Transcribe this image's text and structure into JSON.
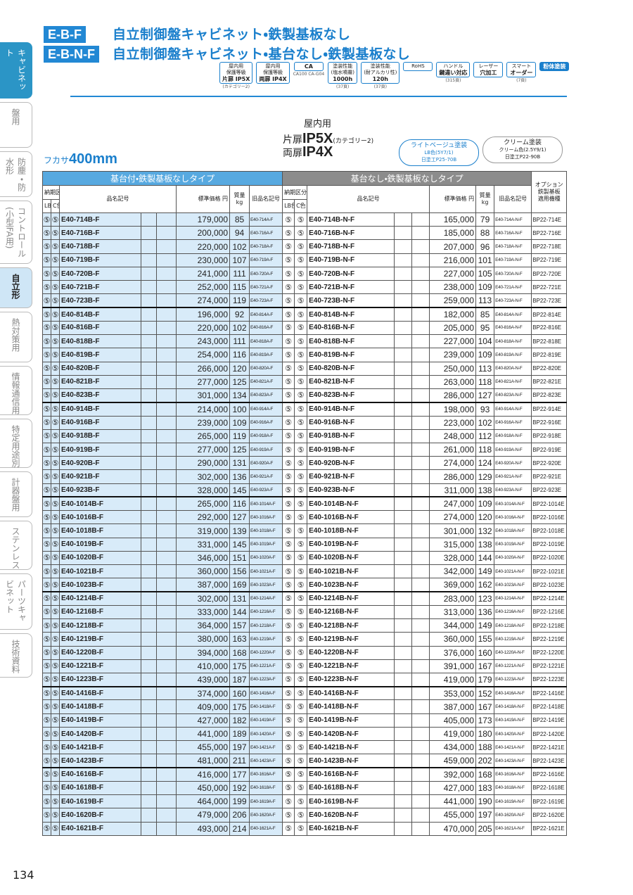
{
  "header": {
    "codes": [
      "E-B-F",
      "E-B-N-F"
    ],
    "titles": [
      "自立制御盤キャビネット・鉄製基板なし",
      "自立制御盤キャビネット・基台なし・鉄製基板なし"
    ]
  },
  "badges": [
    {
      "top": "屋内用",
      "mid": "保護等級",
      "main": "片扉 IP5X",
      "note": "(カテゴリー2)"
    },
    {
      "top": "屋内用",
      "mid": "保護等級",
      "main": "両扉 IP4X"
    },
    {
      "main": "CA",
      "note": "CA100 CA-G04"
    },
    {
      "top": "塗装性能",
      "mid": "(塩水噴霧)",
      "main": "1000h",
      "note": "(37頁)"
    },
    {
      "top": "塗装性能",
      "mid": "(耐アルカリ性)",
      "main": "120h",
      "note": "(37頁)"
    },
    {
      "top": "RoHS"
    },
    {
      "top": "ハンドル",
      "main": "鍵違い対応",
      "note": "(315頁)"
    },
    {
      "top": "レーザー",
      "main": "穴加工"
    },
    {
      "top": "スマート",
      "main": "オーダー",
      "note": "(7頁)"
    },
    {
      "main": "粉体塗装"
    }
  ],
  "sidebar": {
    "tabs": [
      "キャビネット",
      "盤用",
      "防塵・防水形",
      "コントロール(小型FA用)",
      "自立形",
      "熱対策用",
      "情報通信用",
      "特定用途別",
      "計器盤用",
      "ステンレス",
      "パーツキャビネット",
      "技術資料"
    ]
  },
  "spec": {
    "usage": "屋内用",
    "single_door": "片扉",
    "ip_single": "IP5X",
    "category": "(カテゴリー2)",
    "double_door": "両扉",
    "ip_double": "IP4X",
    "depth_label": "フカサ",
    "depth": "400mm",
    "colors": [
      {
        "name": "ライトベージュ塗装",
        "code": "LB色(5Y7/1)",
        "std": "日塗工P25-70B"
      },
      {
        "name": "クリーム塗装",
        "code": "クリーム色(2.5Y9/1)",
        "std": "日塗工P22-90B"
      }
    ]
  },
  "table": {
    "group_headers": [
      "基台付・鉄製基板なしタイプ",
      "基台なし・鉄製基板なしタイプ"
    ],
    "option_header": [
      "オプション",
      "鉄製基板",
      "適用機種"
    ],
    "left_columns": {
      "delivery": "納期区分",
      "lb": "LB色",
      "c": "C色",
      "name": "品名記号",
      "price": "標準価格 円",
      "mass": "質量 kg",
      "old": "旧品名記号"
    },
    "right_columns": {
      "delivery": "納期区分",
      "lb": "LB色",
      "c": "C色",
      "name": "品名記号",
      "price": "標準価格 円",
      "mass": "質量 kg",
      "old": "旧品名記号"
    },
    "rows": [
      [
        "⑤",
        "⑤",
        "E40-714B-F",
        "179,000",
        "85",
        "E40-714A-F",
        "⑤",
        "⑤",
        "E40-714B-N-F",
        "165,000",
        "79",
        "E40-714A-N-F",
        "BP22-714E"
      ],
      [
        "⑤",
        "⑤",
        "E40-716B-F",
        "200,000",
        "94",
        "E40-716A-F",
        "⑤",
        "⑤",
        "E40-716B-N-F",
        "185,000",
        "88",
        "E40-716A-N-F",
        "BP22-716E"
      ],
      [
        "⑤",
        "⑤",
        "E40-718B-F",
        "220,000",
        "102",
        "E40-718A-F",
        "⑤",
        "⑤",
        "E40-718B-N-F",
        "207,000",
        "96",
        "E40-718A-N-F",
        "BP22-718E"
      ],
      [
        "⑤",
        "⑤",
        "E40-719B-F",
        "230,000",
        "107",
        "E40-719A-F",
        "⑤",
        "⑤",
        "E40-719B-N-F",
        "216,000",
        "101",
        "E40-719A-N-F",
        "BP22-719E"
      ],
      [
        "⑤",
        "⑤",
        "E40-720B-F",
        "241,000",
        "111",
        "E40-720A-F",
        "⑤",
        "⑤",
        "E40-720B-N-F",
        "227,000",
        "105",
        "E40-720A-N-F",
        "BP22-720E"
      ],
      [
        "⑤",
        "⑤",
        "E40-721B-F",
        "252,000",
        "115",
        "E40-721A-F",
        "⑤",
        "⑤",
        "E40-721B-N-F",
        "238,000",
        "109",
        "E40-721A-N-F",
        "BP22-721E"
      ],
      [
        "⑤",
        "⑤",
        "E40-723B-F",
        "274,000",
        "119",
        "E40-723A-F",
        "⑤",
        "⑤",
        "E40-723B-N-F",
        "259,000",
        "113",
        "E40-723A-N-F",
        "BP22-723E"
      ],
      [
        "⑤",
        "⑤",
        "E40-814B-F",
        "196,000",
        "92",
        "E40-814A-F",
        "⑤",
        "⑤",
        "E40-814B-N-F",
        "182,000",
        "85",
        "E40-814A-N-F",
        "BP22-814E"
      ],
      [
        "⑤",
        "⑤",
        "E40-816B-F",
        "220,000",
        "102",
        "E40-816A-F",
        "⑤",
        "⑤",
        "E40-816B-N-F",
        "205,000",
        "95",
        "E40-816A-N-F",
        "BP22-816E"
      ],
      [
        "⑤",
        "⑤",
        "E40-818B-F",
        "243,000",
        "111",
        "E40-818A-F",
        "⑤",
        "⑤",
        "E40-818B-N-F",
        "227,000",
        "104",
        "E40-818A-N-F",
        "BP22-818E"
      ],
      [
        "⑤",
        "⑤",
        "E40-819B-F",
        "254,000",
        "116",
        "E40-819A-F",
        "⑤",
        "⑤",
        "E40-819B-N-F",
        "239,000",
        "109",
        "E40-819A-N-F",
        "BP22-819E"
      ],
      [
        "⑤",
        "⑤",
        "E40-820B-F",
        "266,000",
        "120",
        "E40-820A-F",
        "⑤",
        "⑤",
        "E40-820B-N-F",
        "250,000",
        "113",
        "E40-820A-N-F",
        "BP22-820E"
      ],
      [
        "⑤",
        "⑤",
        "E40-821B-F",
        "277,000",
        "125",
        "E40-821A-F",
        "⑤",
        "⑤",
        "E40-821B-N-F",
        "263,000",
        "118",
        "E40-821A-N-F",
        "BP22-821E"
      ],
      [
        "⑤",
        "⑤",
        "E40-823B-F",
        "301,000",
        "134",
        "E40-823A-F",
        "⑤",
        "⑤",
        "E40-823B-N-F",
        "286,000",
        "127",
        "E40-823A-N-F",
        "BP22-823E"
      ],
      [
        "⑤",
        "⑤",
        "E40-914B-F",
        "214,000",
        "100",
        "E40-914A-F",
        "⑤",
        "⑤",
        "E40-914B-N-F",
        "198,000",
        "93",
        "E40-914A-N-F",
        "BP22-914E"
      ],
      [
        "⑤",
        "⑤",
        "E40-916B-F",
        "239,000",
        "109",
        "E40-916A-F",
        "⑤",
        "⑤",
        "E40-916B-N-F",
        "223,000",
        "102",
        "E40-916A-N-F",
        "BP22-916E"
      ],
      [
        "⑤",
        "⑤",
        "E40-918B-F",
        "265,000",
        "119",
        "E40-918A-F",
        "⑤",
        "⑤",
        "E40-918B-N-F",
        "248,000",
        "112",
        "E40-918A-N-F",
        "BP22-918E"
      ],
      [
        "⑤",
        "⑤",
        "E40-919B-F",
        "277,000",
        "125",
        "E40-919A-F",
        "⑤",
        "⑤",
        "E40-919B-N-F",
        "261,000",
        "118",
        "E40-919A-N-F",
        "BP22-919E"
      ],
      [
        "⑤",
        "⑤",
        "E40-920B-F",
        "290,000",
        "131",
        "E40-920A-F",
        "⑤",
        "⑤",
        "E40-920B-N-F",
        "274,000",
        "124",
        "E40-920A-N-F",
        "BP22-920E"
      ],
      [
        "⑤",
        "⑤",
        "E40-921B-F",
        "302,000",
        "136",
        "E40-921A-F",
        "⑤",
        "⑤",
        "E40-921B-N-F",
        "286,000",
        "129",
        "E40-921A-N-F",
        "BP22-921E"
      ],
      [
        "⑤",
        "⑤",
        "E40-923B-F",
        "328,000",
        "145",
        "E40-923A-F",
        "⑤",
        "⑤",
        "E40-923B-N-F",
        "311,000",
        "138",
        "E40-923A-N-F",
        "BP22-923E"
      ],
      [
        "⑤",
        "⑤",
        "E40-1014B-F",
        "265,000",
        "116",
        "E40-1014A-F",
        "⑤",
        "⑤",
        "E40-1014B-N-F",
        "247,000",
        "109",
        "E40-1014A-N-F",
        "BP22-1014E"
      ],
      [
        "⑤",
        "⑤",
        "E40-1016B-F",
        "292,000",
        "127",
        "E40-1016A-F",
        "⑤",
        "⑤",
        "E40-1016B-N-F",
        "274,000",
        "120",
        "E40-1016A-N-F",
        "BP22-1016E"
      ],
      [
        "⑤",
        "⑤",
        "E40-1018B-F",
        "319,000",
        "139",
        "E40-1018A-F",
        "⑤",
        "⑤",
        "E40-1018B-N-F",
        "301,000",
        "132",
        "E40-1018A-N-F",
        "BP22-1018E"
      ],
      [
        "⑤",
        "⑤",
        "E40-1019B-F",
        "331,000",
        "145",
        "E40-1019A-F",
        "⑤",
        "⑤",
        "E40-1019B-N-F",
        "315,000",
        "138",
        "E40-1019A-N-F",
        "BP22-1019E"
      ],
      [
        "⑤",
        "⑤",
        "E40-1020B-F",
        "346,000",
        "151",
        "E40-1020A-F",
        "⑤",
        "⑤",
        "E40-1020B-N-F",
        "328,000",
        "144",
        "E40-1020A-N-F",
        "BP22-1020E"
      ],
      [
        "⑤",
        "⑤",
        "E40-1021B-F",
        "360,000",
        "156",
        "E40-1021A-F",
        "⑤",
        "⑤",
        "E40-1021B-N-F",
        "342,000",
        "149",
        "E40-1021A-N-F",
        "BP22-1021E"
      ],
      [
        "⑤",
        "⑤",
        "E40-1023B-F",
        "387,000",
        "169",
        "E40-1023A-F",
        "⑤",
        "⑤",
        "E40-1023B-N-F",
        "369,000",
        "162",
        "E40-1023A-N-F",
        "BP22-1023E"
      ],
      [
        "⑤",
        "⑤",
        "E40-1214B-F",
        "302,000",
        "131",
        "E40-1214A-F",
        "⑤",
        "⑤",
        "E40-1214B-N-F",
        "283,000",
        "123",
        "E40-1214A-N-F",
        "BP22-1214E"
      ],
      [
        "⑤",
        "⑤",
        "E40-1216B-F",
        "333,000",
        "144",
        "E40-1216A-F",
        "⑤",
        "⑤",
        "E40-1216B-N-F",
        "313,000",
        "136",
        "E40-1216A-N-F",
        "BP22-1216E"
      ],
      [
        "⑤",
        "⑤",
        "E40-1218B-F",
        "364,000",
        "157",
        "E40-1218A-F",
        "⑤",
        "⑤",
        "E40-1218B-N-F",
        "344,000",
        "149",
        "E40-1218A-N-F",
        "BP22-1218E"
      ],
      [
        "⑤",
        "⑤",
        "E40-1219B-F",
        "380,000",
        "163",
        "E40-1219A-F",
        "⑤",
        "⑤",
        "E40-1219B-N-F",
        "360,000",
        "155",
        "E40-1219A-N-F",
        "BP22-1219E"
      ],
      [
        "⑤",
        "⑤",
        "E40-1220B-F",
        "394,000",
        "168",
        "E40-1220A-F",
        "⑤",
        "⑤",
        "E40-1220B-N-F",
        "376,000",
        "160",
        "E40-1220A-N-F",
        "BP22-1220E"
      ],
      [
        "⑤",
        "⑤",
        "E40-1221B-F",
        "410,000",
        "175",
        "E40-1221A-F",
        "⑤",
        "⑤",
        "E40-1221B-N-F",
        "391,000",
        "167",
        "E40-1221A-N-F",
        "BP22-1221E"
      ],
      [
        "⑤",
        "⑤",
        "E40-1223B-F",
        "439,000",
        "187",
        "E40-1223A-F",
        "⑤",
        "⑤",
        "E40-1223B-N-F",
        "419,000",
        "179",
        "E40-1223A-N-F",
        "BP22-1223E"
      ],
      [
        "⑤",
        "⑤",
        "E40-1416B-F",
        "374,000",
        "160",
        "E40-1416A-F",
        "⑤",
        "⑤",
        "E40-1416B-N-F",
        "353,000",
        "152",
        "E40-1416A-N-F",
        "BP22-1416E"
      ],
      [
        "⑤",
        "⑤",
        "E40-1418B-F",
        "409,000",
        "175",
        "E40-1418A-F",
        "⑤",
        "⑤",
        "E40-1418B-N-F",
        "387,000",
        "167",
        "E40-1418A-N-F",
        "BP22-1418E"
      ],
      [
        "⑤",
        "⑤",
        "E40-1419B-F",
        "427,000",
        "182",
        "E40-1419A-F",
        "⑤",
        "⑤",
        "E40-1419B-N-F",
        "405,000",
        "173",
        "E40-1419A-N-F",
        "BP22-1419E"
      ],
      [
        "⑤",
        "⑤",
        "E40-1420B-F",
        "441,000",
        "189",
        "E40-1420A-F",
        "⑤",
        "⑤",
        "E40-1420B-N-F",
        "419,000",
        "180",
        "E40-1420A-N-F",
        "BP22-1420E"
      ],
      [
        "⑤",
        "⑤",
        "E40-1421B-F",
        "455,000",
        "197",
        "E40-1421A-F",
        "⑤",
        "⑤",
        "E40-1421B-N-F",
        "434,000",
        "188",
        "E40-1421A-N-F",
        "BP22-1421E"
      ],
      [
        "⑤",
        "⑤",
        "E40-1423B-F",
        "481,000",
        "211",
        "E40-1423A-F",
        "⑤",
        "⑤",
        "E40-1423B-N-F",
        "459,000",
        "202",
        "E40-1423A-N-F",
        "BP22-1423E"
      ],
      [
        "⑤",
        "⑤",
        "E40-1616B-F",
        "416,000",
        "177",
        "E40-1616A-F",
        "⑤",
        "⑤",
        "E40-1616B-N-F",
        "392,000",
        "168",
        "E40-1616A-N-F",
        "BP22-1616E"
      ],
      [
        "⑤",
        "⑤",
        "E40-1618B-F",
        "450,000",
        "192",
        "E40-1618A-F",
        "⑤",
        "⑤",
        "E40-1618B-N-F",
        "427,000",
        "183",
        "E40-1618A-N-F",
        "BP22-1618E"
      ],
      [
        "⑤",
        "⑤",
        "E40-1619B-F",
        "464,000",
        "199",
        "E40-1619A-F",
        "⑤",
        "⑤",
        "E40-1619B-N-F",
        "441,000",
        "190",
        "E40-1619A-N-F",
        "BP22-1619E"
      ],
      [
        "⑤",
        "⑤",
        "E40-1620B-F",
        "479,000",
        "206",
        "E40-1620A-F",
        "⑤",
        "⑤",
        "E40-1620B-N-F",
        "455,000",
        "197",
        "E40-1620A-N-F",
        "BP22-1620E"
      ],
      [
        "⑤",
        "⑤",
        "E40-1621B-F",
        "493,000",
        "214",
        "E40-1621A-F",
        "⑤",
        "⑤",
        "E40-1621B-N-F",
        "470,000",
        "205",
        "E40-1621A-N-F",
        "BP22-1621E"
      ]
    ]
  },
  "footer": {
    "page_number": "134"
  }
}
